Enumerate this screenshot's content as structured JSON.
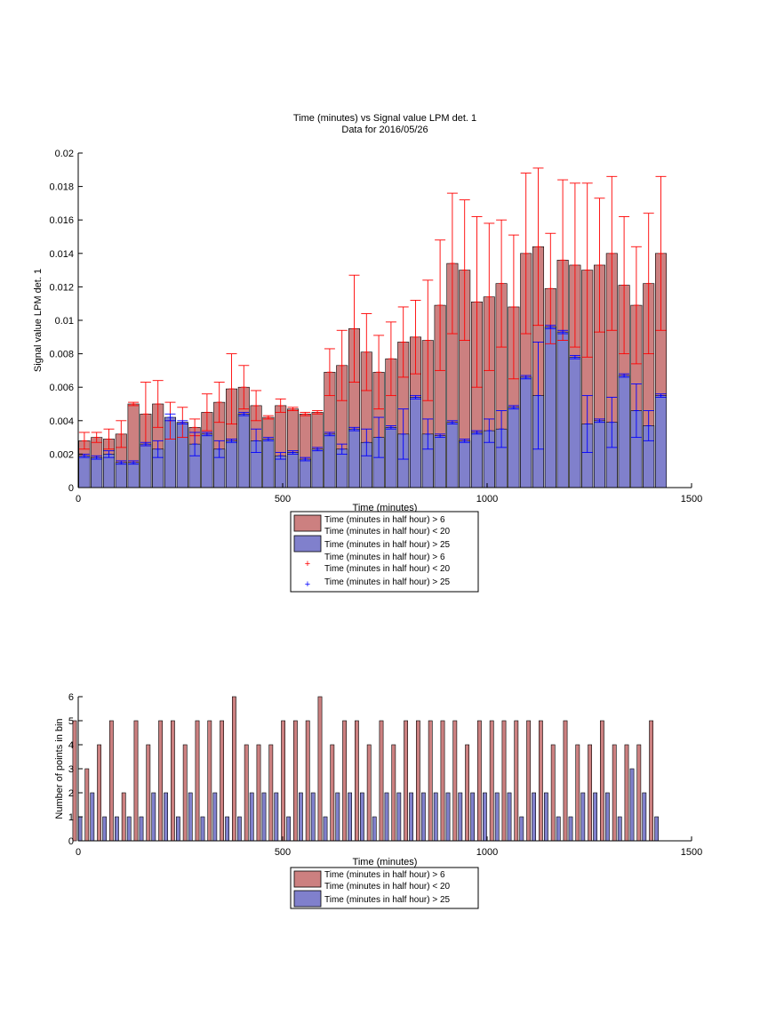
{
  "colors": {
    "red_bar": "#cc8080",
    "blue_bar": "#8080cc",
    "red_err": "#ff0000",
    "blue_err": "#0000ff"
  },
  "chart_data": [
    {
      "type": "bar",
      "title": "Time (minutes) vs Signal value LPM det. 1",
      "subtitle": "Data for 2016/05/26",
      "xlabel": "Time (minutes)",
      "ylabel": "Signal value LPM det. 1",
      "xlim": [
        0,
        1500
      ],
      "ylim": [
        0,
        0.02
      ],
      "xticks": [
        "0",
        "500",
        "1000",
        "1500"
      ],
      "yticks": [
        "0",
        "0.002",
        "0.004",
        "0.006",
        "0.008",
        "0.01",
        "0.012",
        "0.014",
        "0.016",
        "0.018",
        "0.02"
      ],
      "x": [
        15,
        45,
        75,
        105,
        135,
        165,
        195,
        225,
        255,
        285,
        315,
        345,
        375,
        405,
        435,
        465,
        495,
        525,
        555,
        585,
        615,
        645,
        675,
        705,
        735,
        765,
        795,
        825,
        855,
        885,
        915,
        945,
        975,
        1005,
        1035,
        1065,
        1095,
        1125,
        1155,
        1185,
        1215,
        1245,
        1275,
        1305,
        1335,
        1365,
        1395,
        1425
      ],
      "series": [
        {
          "name": "Time (minutes in half hour) > 6\nTime (minutes in half hour) < 20",
          "values": [
            0.0028,
            0.003,
            0.0029,
            0.0032,
            0.005,
            0.0044,
            0.005,
            0.004,
            0.0039,
            0.0036,
            0.0045,
            0.0051,
            0.0059,
            0.006,
            0.0049,
            0.0042,
            0.0049,
            0.0047,
            0.0044,
            0.0045,
            0.0069,
            0.0073,
            0.0095,
            0.0081,
            0.0069,
            0.0077,
            0.0087,
            0.009,
            0.0088,
            0.0109,
            0.0134,
            0.013,
            0.0111,
            0.0114,
            0.0122,
            0.0108,
            0.014,
            0.0144,
            0.0119,
            0.0136,
            0.0133,
            0.013,
            0.0133,
            0.014,
            0.0121,
            0.0109,
            0.0122,
            0.014
          ],
          "err": [
            0.0005,
            0.0003,
            0.0006,
            0.0008,
            0.0001,
            0.0019,
            0.0014,
            0.0011,
            0.0009,
            0.0005,
            0.0011,
            0.0012,
            0.0021,
            0.0013,
            0.0009,
            0.0001,
            0.0004,
            0.0001,
            0.0001,
            0.0001,
            0.0014,
            0.0021,
            0.0032,
            0.0023,
            0.0022,
            0.0022,
            0.0021,
            0.0022,
            0.0036,
            0.0039,
            0.0042,
            0.0042,
            0.0051,
            0.0044,
            0.0038,
            0.0043,
            0.0048,
            0.0047,
            0.0033,
            0.0048,
            0.0049,
            0.0052,
            0.004,
            0.0046,
            0.0041,
            0.0035,
            0.0042,
            0.0046
          ]
        },
        {
          "name": "Time (minutes in half hour) > 25",
          "values": [
            0.0019,
            0.0018,
            0.002,
            0.0015,
            0.0015,
            0.0026,
            0.0023,
            0.0042,
            0.0039,
            0.0026,
            0.0032,
            0.0023,
            0.0028,
            0.0044,
            0.0028,
            0.0029,
            0.0019,
            0.0021,
            0.0017,
            0.0023,
            0.0032,
            0.0023,
            0.0035,
            0.0027,
            0.003,
            0.0036,
            0.0032,
            0.0054,
            0.0032,
            0.0031,
            0.0039,
            0.0028,
            0.0033,
            0.0034,
            0.0035,
            0.0048,
            0.0066,
            0.0055,
            0.0096,
            0.0093,
            0.0078,
            0.0038,
            0.004,
            0.0039,
            0.0067,
            0.0046,
            0.0037,
            0.0055
          ],
          "err": [
            0.0001,
            0.0001,
            0.0002,
            0.0001,
            0.0001,
            0.0001,
            0.0005,
            0.0002,
            0.0001,
            0.0007,
            0.0001,
            0.0005,
            0.0001,
            0.0001,
            0.0007,
            0.0001,
            0.0002,
            0.0001,
            0.0001,
            0.0001,
            0.0001,
            0.0003,
            0.0001,
            0.0008,
            0.0012,
            0.0001,
            0.0015,
            0.0001,
            0.0009,
            0.0001,
            0.0001,
            0.0001,
            0.0001,
            0.0007,
            0.0011,
            0.0001,
            0.0001,
            0.0032,
            0.0001,
            0.0001,
            0.0001,
            0.0017,
            0.0001,
            0.0015,
            0.0001,
            0.0016,
            0.0009,
            0.0001
          ]
        }
      ],
      "legend": {
        "placement": "bottom",
        "entries": [
          "Time (minutes in half hour) > 6\nTime (minutes in half hour) < 20",
          "Time (minutes in half hour) > 25",
          "Time (minutes in half hour) > 6\nTime (minutes in half hour) < 20",
          "Time (minutes in half hour) > 25"
        ]
      }
    },
    {
      "type": "bar",
      "title": "",
      "xlabel": "Time (minutes)",
      "ylabel": "Number of points in bin",
      "xlim": [
        0,
        1500
      ],
      "ylim": [
        0,
        6
      ],
      "xticks": [
        "0",
        "500",
        "1000",
        "1500"
      ],
      "yticks": [
        "0",
        "1",
        "2",
        "3",
        "4",
        "5",
        "6"
      ],
      "x": [
        15,
        45,
        75,
        105,
        135,
        165,
        195,
        225,
        255,
        285,
        315,
        345,
        375,
        405,
        435,
        465,
        495,
        525,
        555,
        585,
        615,
        645,
        675,
        705,
        735,
        765,
        795,
        825,
        855,
        885,
        915,
        945,
        975,
        1005,
        1035,
        1065,
        1095,
        1125,
        1155,
        1185,
        1215,
        1245,
        1275,
        1305,
        1335,
        1365,
        1395,
        1425
      ],
      "series": [
        {
          "name": "Time (minutes in half hour) > 6\nTime (minutes in half hour) < 20",
          "values": [
            5,
            3,
            4,
            5,
            2,
            5,
            4,
            5,
            5,
            4,
            5,
            5,
            5,
            6,
            4,
            4,
            4,
            5,
            5,
            5,
            6,
            4,
            5,
            5,
            4,
            5,
            4,
            5,
            5,
            5,
            5,
            5,
            4,
            5,
            5,
            5,
            5,
            5,
            5,
            4,
            5,
            4,
            4,
            5,
            4,
            4,
            4,
            5
          ]
        },
        {
          "name": "Time (minutes in half hour) > 25",
          "values": [
            1,
            2,
            1,
            1,
            1,
            1,
            2,
            2,
            1,
            2,
            1,
            2,
            1,
            1,
            2,
            2,
            2,
            1,
            2,
            2,
            1,
            2,
            2,
            2,
            1,
            2,
            2,
            2,
            2,
            2,
            2,
            2,
            2,
            2,
            2,
            2,
            1,
            2,
            2,
            1,
            1,
            2,
            2,
            2,
            1,
            3,
            2,
            1
          ]
        }
      ],
      "legend": {
        "placement": "bottom",
        "entries": [
          "Time (minutes in half hour) > 6\nTime (minutes in half hour) < 20",
          "Time (minutes in half hour) > 25"
        ]
      }
    }
  ]
}
